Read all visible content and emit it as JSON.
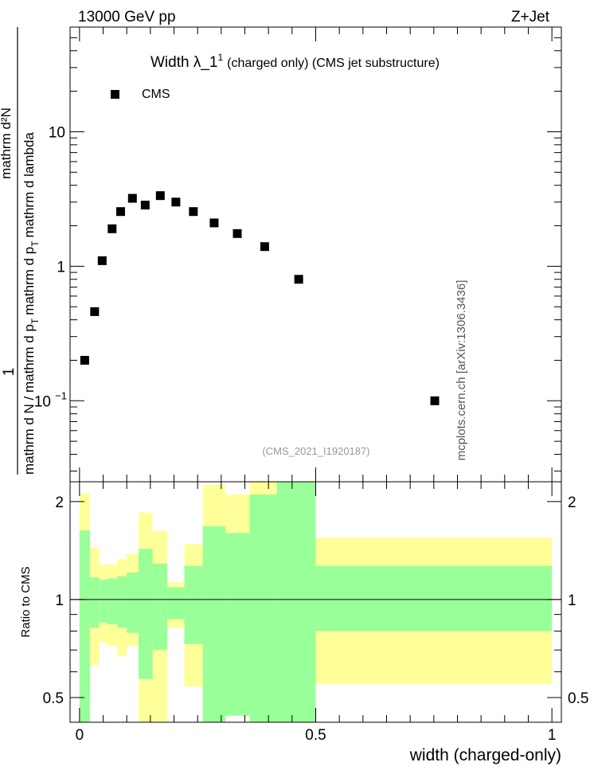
{
  "header": {
    "left": "13000 GeV pp",
    "right": "Z+Jet"
  },
  "side_label": "mcplots.cern.ch [arXiv:1306.3436]",
  "analysis_id": "(CMS_2021_I1920187)",
  "colors": {
    "band_outer": "#ffff99",
    "band_inner": "#99ff99",
    "marker": "#000000"
  },
  "chart_data": [
    {
      "type": "scatter",
      "title_main": "Width λ_1",
      "title_sup": "1",
      "title_rest": "(charged only) (CMS jet substructure)",
      "ylabel": {
        "num": "mathrm d²N",
        "den_top": "mathrm d p",
        "den_top_sub": "T",
        "den_mid": "mathrm d lambda",
        "den_bottom": "mathrm d N / mathrm d p",
        "den_bottom_sub": "T",
        "one": "1"
      },
      "yscale": "log",
      "ylim": [
        0.025,
        60
      ],
      "xlim": [
        -0.02,
        1.02
      ],
      "y_ticks": [
        {
          "value": 10,
          "label": "10"
        },
        {
          "value": 1,
          "label": "1"
        },
        {
          "value": 0.1,
          "label": "10",
          "sup": "−1"
        }
      ],
      "legend": {
        "label": "CMS",
        "position": "top-left"
      },
      "series": [
        {
          "name": "CMS",
          "points": [
            {
              "x": 0.011,
              "y": 0.2
            },
            {
              "x": 0.032,
              "y": 0.46
            },
            {
              "x": 0.048,
              "y": 1.1
            },
            {
              "x": 0.069,
              "y": 1.9
            },
            {
              "x": 0.087,
              "y": 2.55
            },
            {
              "x": 0.112,
              "y": 3.2
            },
            {
              "x": 0.139,
              "y": 2.85
            },
            {
              "x": 0.171,
              "y": 3.35
            },
            {
              "x": 0.204,
              "y": 3.0
            },
            {
              "x": 0.241,
              "y": 2.55
            },
            {
              "x": 0.285,
              "y": 2.1
            },
            {
              "x": 0.334,
              "y": 1.75
            },
            {
              "x": 0.392,
              "y": 1.4
            },
            {
              "x": 0.464,
              "y": 0.8
            },
            {
              "x": 0.752,
              "y": 0.1
            }
          ]
        }
      ]
    },
    {
      "type": "area",
      "ylabel": "Ratio to CMS",
      "xlabel": "width (charged-only)",
      "yscale": "log",
      "ylim": [
        0.42,
        2.3
      ],
      "xlim": [
        -0.02,
        1.02
      ],
      "x_ticks": [
        {
          "value": 0,
          "label": "0"
        },
        {
          "value": 0.5,
          "label": "0.5"
        },
        {
          "value": 1,
          "label": "1"
        }
      ],
      "y_ticks": [
        {
          "value": 2,
          "label": "2"
        },
        {
          "value": 1,
          "label": "1"
        },
        {
          "value": 0.5,
          "label": "0.5"
        }
      ],
      "reference_line": 1,
      "bins": [
        {
          "x0": 0.0,
          "x1": 0.022,
          "outer_lo": 0.3,
          "outer_hi": 2.12,
          "inner_lo": 0.42,
          "inner_hi": 1.63
        },
        {
          "x0": 0.022,
          "x1": 0.042,
          "outer_lo": 0.63,
          "outer_hi": 1.44,
          "inner_lo": 0.82,
          "inner_hi": 1.17
        },
        {
          "x0": 0.042,
          "x1": 0.058,
          "outer_lo": 0.74,
          "outer_hi": 1.28,
          "inner_lo": 0.85,
          "inner_hi": 1.15
        },
        {
          "x0": 0.058,
          "x1": 0.08,
          "outer_lo": 0.72,
          "outer_hi": 1.28,
          "inner_lo": 0.84,
          "inner_hi": 1.16
        },
        {
          "x0": 0.08,
          "x1": 0.1,
          "outer_lo": 0.67,
          "outer_hi": 1.33,
          "inner_lo": 0.82,
          "inner_hi": 1.18
        },
        {
          "x0": 0.1,
          "x1": 0.125,
          "outer_lo": 0.72,
          "outer_hi": 1.38,
          "inner_lo": 0.79,
          "inner_hi": 1.21
        },
        {
          "x0": 0.125,
          "x1": 0.155,
          "outer_lo": 0.38,
          "outer_hi": 1.85,
          "inner_lo": 0.57,
          "inner_hi": 1.43
        },
        {
          "x0": 0.155,
          "x1": 0.186,
          "outer_lo": 0.38,
          "outer_hi": 1.62,
          "inner_lo": 0.7,
          "inner_hi": 1.29
        },
        {
          "x0": 0.186,
          "x1": 0.222,
          "outer_lo": 0.82,
          "outer_hi": 1.13,
          "inner_lo": 0.87,
          "inner_hi": 1.09
        },
        {
          "x0": 0.222,
          "x1": 0.261,
          "outer_lo": 0.54,
          "outer_hi": 1.48,
          "inner_lo": 0.73,
          "inner_hi": 1.27
        },
        {
          "x0": 0.261,
          "x1": 0.309,
          "outer_lo": 0.42,
          "outer_hi": 2.25,
          "inner_lo": 0.42,
          "inner_hi": 1.68
        },
        {
          "x0": 0.309,
          "x1": 0.36,
          "outer_lo": 0.44,
          "outer_hi": 2.1,
          "inner_lo": 0.44,
          "inner_hi": 1.6
        },
        {
          "x0": 0.36,
          "x1": 0.418,
          "outer_lo": 0.4,
          "outer_hi": 2.5,
          "inner_lo": 0.4,
          "inner_hi": 2.1
        },
        {
          "x0": 0.418,
          "x1": 0.5,
          "outer_lo": 0.4,
          "outer_hi": 2.5,
          "inner_lo": 0.4,
          "inner_hi": 2.5
        },
        {
          "x0": 0.5,
          "x1": 1.0,
          "outer_lo": 0.55,
          "outer_hi": 1.55,
          "inner_lo": 0.8,
          "inner_hi": 1.27
        }
      ]
    }
  ]
}
